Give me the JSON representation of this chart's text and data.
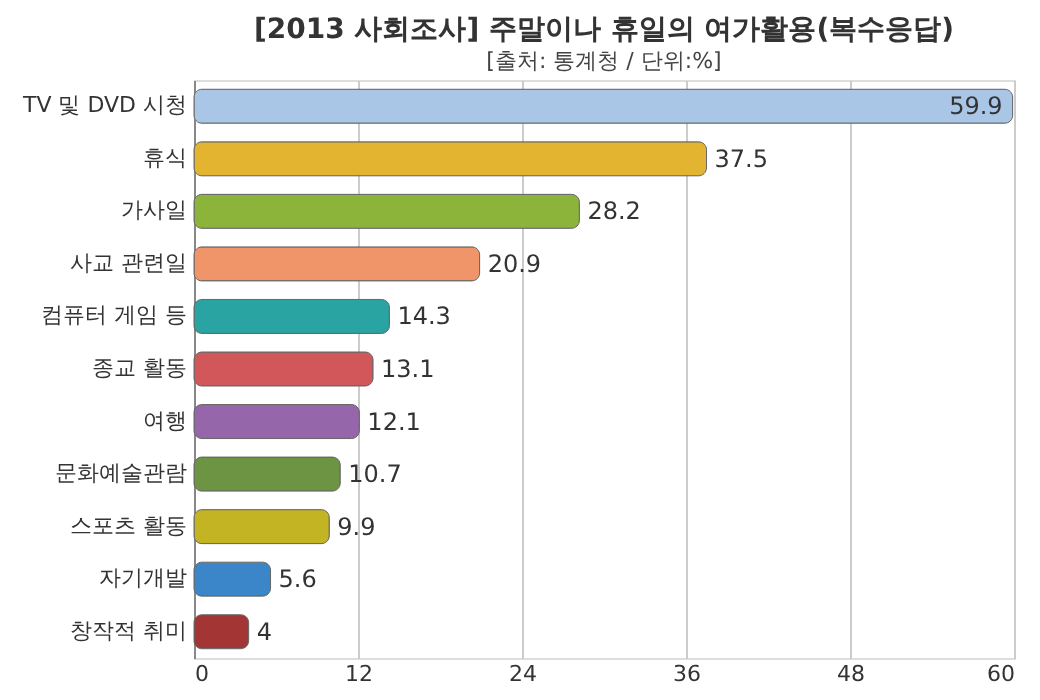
{
  "chart_data": {
    "type": "bar",
    "orientation": "horizontal",
    "title": "[2013 사회조사] 주말이나 휴일의 여가활용(복수응답)",
    "subtitle": "[출처: 통계청 / 단위:%]",
    "categories": [
      "TV 및 DVD 시청",
      "휴식",
      "가사일",
      "사교 관련일",
      "컴퓨터 게임 등",
      "종교 활동",
      "여행",
      "문화예술관람",
      "스포츠 활동",
      "자기개발",
      "창작적 취미"
    ],
    "values": [
      59.9,
      37.5,
      28.2,
      20.9,
      14.3,
      13.1,
      12.1,
      10.7,
      9.9,
      5.6,
      4
    ],
    "colors": [
      "#a9c6e6",
      "#e2b430",
      "#8db43a",
      "#f0956a",
      "#2aa3a3",
      "#d2575a",
      "#9566aa",
      "#6d9443",
      "#c2b423",
      "#3a86c8",
      "#a33535"
    ],
    "xlim": [
      0,
      60
    ],
    "xticks": [
      0,
      12,
      24,
      36,
      48,
      60
    ],
    "grid": "x",
    "data_labels": true
  }
}
